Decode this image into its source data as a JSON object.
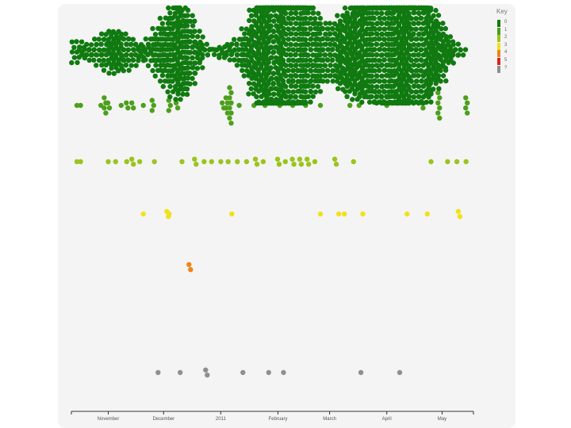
{
  "chart_data": {
    "type": "scatter",
    "title": "",
    "xlabel": "",
    "ylabel": "",
    "x_axis": {
      "ticks": [
        {
          "label": "November",
          "date": "2010-11-01"
        },
        {
          "label": "December",
          "date": "2010-12-01"
        },
        {
          "label": "2011",
          "date": "2011-01-01"
        },
        {
          "label": "February",
          "date": "2011-02-01"
        },
        {
          "label": "March",
          "date": "2011-03-01"
        },
        {
          "label": "April",
          "date": "2011-04-01"
        },
        {
          "label": "May",
          "date": "2011-05-01"
        }
      ],
      "range": [
        "2010-10-12",
        "2011-05-18"
      ]
    },
    "grid": false,
    "legend": {
      "title": "Key",
      "placement": "top-right",
      "entries": [
        {
          "label": "0",
          "color": "#107a10"
        },
        {
          "label": "1",
          "color": "#4c9f1b"
        },
        {
          "label": "2",
          "color": "#9bc41c"
        },
        {
          "label": "3",
          "color": "#f1e11a"
        },
        {
          "label": "4",
          "color": "#ef8419"
        },
        {
          "label": "5",
          "color": "#d9261c"
        },
        {
          "label": "?",
          "color": "#8f8f8f"
        }
      ]
    },
    "series": [
      {
        "key": "1",
        "points": [
          {
            "x": "2010-10-15",
            "count": 1
          },
          {
            "x": "2010-10-17",
            "count": 1
          },
          {
            "x": "2010-10-28",
            "count": 1
          },
          {
            "x": "2010-10-30",
            "count": 4
          },
          {
            "x": "2010-11-01",
            "count": 2
          },
          {
            "x": "2010-11-08",
            "count": 1
          },
          {
            "x": "2010-11-11",
            "count": 2
          },
          {
            "x": "2010-11-14",
            "count": 2
          },
          {
            "x": "2010-11-20",
            "count": 1
          },
          {
            "x": "2010-11-25",
            "count": 3
          },
          {
            "x": "2010-12-04",
            "count": 3
          },
          {
            "x": "2010-12-08",
            "count": 2
          },
          {
            "x": "2011-01-02",
            "count": 2
          },
          {
            "x": "2011-01-04",
            "count": 4
          },
          {
            "x": "2011-01-06",
            "count": 8
          },
          {
            "x": "2011-01-11",
            "count": 1
          },
          {
            "x": "2011-01-19",
            "count": 1
          },
          {
            "x": "2011-01-25",
            "count": 1
          },
          {
            "x": "2011-02-02",
            "count": 1
          },
          {
            "x": "2011-02-09",
            "count": 1
          },
          {
            "x": "2011-02-16",
            "count": 1
          },
          {
            "x": "2011-02-24",
            "count": 1
          },
          {
            "x": "2011-03-12",
            "count": 1
          },
          {
            "x": "2011-03-17",
            "count": 1
          },
          {
            "x": "2011-04-01",
            "count": 1
          },
          {
            "x": "2011-04-20",
            "count": 2
          },
          {
            "x": "2011-04-29",
            "count": 6
          },
          {
            "x": "2011-05-14",
            "count": 4
          }
        ]
      },
      {
        "key": "2",
        "points": [
          {
            "x": "2010-10-15",
            "count": 1
          },
          {
            "x": "2010-10-17",
            "count": 1
          },
          {
            "x": "2010-11-01",
            "count": 1
          },
          {
            "x": "2010-11-05",
            "count": 1
          },
          {
            "x": "2010-11-11",
            "count": 1
          },
          {
            "x": "2010-11-14",
            "count": 2
          },
          {
            "x": "2010-11-18",
            "count": 1
          },
          {
            "x": "2010-11-26",
            "count": 1
          },
          {
            "x": "2010-12-11",
            "count": 1
          },
          {
            "x": "2010-12-18",
            "count": 2
          },
          {
            "x": "2010-12-23",
            "count": 1
          },
          {
            "x": "2010-12-27",
            "count": 1
          },
          {
            "x": "2011-01-01",
            "count": 1
          },
          {
            "x": "2011-01-05",
            "count": 1
          },
          {
            "x": "2011-01-10",
            "count": 1
          },
          {
            "x": "2011-01-15",
            "count": 1
          },
          {
            "x": "2011-01-20",
            "count": 2
          },
          {
            "x": "2011-01-24",
            "count": 1
          },
          {
            "x": "2011-02-01",
            "count": 2
          },
          {
            "x": "2011-02-05",
            "count": 1
          },
          {
            "x": "2011-02-09",
            "count": 2
          },
          {
            "x": "2011-02-13",
            "count": 2
          },
          {
            "x": "2011-02-17",
            "count": 2
          },
          {
            "x": "2011-02-21",
            "count": 1
          },
          {
            "x": "2011-03-04",
            "count": 2
          },
          {
            "x": "2011-03-14",
            "count": 1
          },
          {
            "x": "2011-04-25",
            "count": 1
          },
          {
            "x": "2011-05-04",
            "count": 1
          },
          {
            "x": "2011-05-09",
            "count": 1
          },
          {
            "x": "2011-05-14",
            "count": 1
          }
        ]
      },
      {
        "key": "3",
        "points": [
          {
            "x": "2010-11-20",
            "count": 1
          },
          {
            "x": "2010-12-03",
            "count": 2
          },
          {
            "x": "2010-12-04",
            "count": 1
          },
          {
            "x": "2011-01-07",
            "count": 1
          },
          {
            "x": "2011-02-24",
            "count": 1
          },
          {
            "x": "2011-03-06",
            "count": 1
          },
          {
            "x": "2011-03-09",
            "count": 1
          },
          {
            "x": "2011-03-19",
            "count": 1
          },
          {
            "x": "2011-04-12",
            "count": 1
          },
          {
            "x": "2011-04-23",
            "count": 1
          },
          {
            "x": "2011-05-10",
            "count": 2
          }
        ]
      },
      {
        "key": "4",
        "points": [
          {
            "x": "2010-12-15",
            "count": 2
          }
        ]
      },
      {
        "key": "?",
        "points": [
          {
            "x": "2010-11-28",
            "count": 1
          },
          {
            "x": "2010-12-10",
            "count": 1
          },
          {
            "x": "2010-12-24",
            "count": 2
          },
          {
            "x": "2011-01-13",
            "count": 1
          },
          {
            "x": "2011-01-27",
            "count": 1
          },
          {
            "x": "2011-02-04",
            "count": 1
          },
          {
            "x": "2011-03-18",
            "count": 1
          },
          {
            "x": "2011-04-08",
            "count": 1
          }
        ]
      },
      {
        "key": "0",
        "clusters": [
          {
            "x": "2010-10-15",
            "count": 14
          },
          {
            "x": "2010-10-19",
            "count": 6
          },
          {
            "x": "2010-10-23",
            "count": 10
          },
          {
            "x": "2010-10-27",
            "count": 16
          },
          {
            "x": "2010-10-31",
            "count": 22
          },
          {
            "x": "2010-11-04",
            "count": 26
          },
          {
            "x": "2010-11-08",
            "count": 24
          },
          {
            "x": "2010-11-12",
            "count": 18
          },
          {
            "x": "2010-11-16",
            "count": 12
          },
          {
            "x": "2010-11-20",
            "count": 8
          },
          {
            "x": "2010-11-24",
            "count": 16
          },
          {
            "x": "2010-11-28",
            "count": 28
          },
          {
            "x": "2010-12-02",
            "count": 40
          },
          {
            "x": "2010-12-06",
            "count": 52
          },
          {
            "x": "2010-12-10",
            "count": 56
          },
          {
            "x": "2010-12-14",
            "count": 44
          },
          {
            "x": "2010-12-18",
            "count": 26
          },
          {
            "x": "2010-12-22",
            "count": 10
          },
          {
            "x": "2010-12-26",
            "count": 4
          },
          {
            "x": "2010-12-30",
            "count": 6
          },
          {
            "x": "2011-01-03",
            "count": 8
          },
          {
            "x": "2011-01-07",
            "count": 12
          },
          {
            "x": "2011-01-11",
            "count": 18
          },
          {
            "x": "2011-01-15",
            "count": 30
          },
          {
            "x": "2011-01-19",
            "count": 50
          },
          {
            "x": "2011-01-23",
            "count": 72
          },
          {
            "x": "2011-01-27",
            "count": 86
          },
          {
            "x": "2011-01-31",
            "count": 92
          },
          {
            "x": "2011-02-04",
            "count": 90
          },
          {
            "x": "2011-02-08",
            "count": 84
          },
          {
            "x": "2011-02-12",
            "count": 76
          },
          {
            "x": "2011-02-16",
            "count": 64
          },
          {
            "x": "2011-02-20",
            "count": 48
          },
          {
            "x": "2011-02-24",
            "count": 36
          },
          {
            "x": "2011-02-28",
            "count": 30
          },
          {
            "x": "2011-03-04",
            "count": 36
          },
          {
            "x": "2011-03-08",
            "count": 44
          },
          {
            "x": "2011-03-12",
            "count": 52
          },
          {
            "x": "2011-03-16",
            "count": 56
          },
          {
            "x": "2011-03-20",
            "count": 58
          },
          {
            "x": "2011-03-24",
            "count": 60
          },
          {
            "x": "2011-03-28",
            "count": 66
          },
          {
            "x": "2011-04-01",
            "count": 70
          },
          {
            "x": "2011-04-05",
            "count": 72
          },
          {
            "x": "2011-04-09",
            "count": 74
          },
          {
            "x": "2011-04-13",
            "count": 70
          },
          {
            "x": "2011-04-17",
            "count": 66
          },
          {
            "x": "2011-04-21",
            "count": 60
          },
          {
            "x": "2011-04-25",
            "count": 50
          },
          {
            "x": "2011-04-29",
            "count": 36
          },
          {
            "x": "2011-05-03",
            "count": 20
          },
          {
            "x": "2011-05-07",
            "count": 10
          },
          {
            "x": "2011-05-11",
            "count": 5
          }
        ]
      }
    ]
  }
}
